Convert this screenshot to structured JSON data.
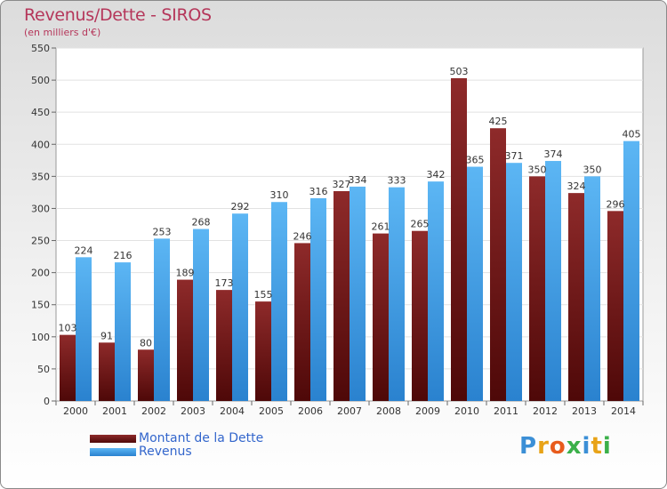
{
  "chart_data": {
    "type": "bar",
    "title": "Revenus/Dette - SIROS",
    "subtitle": "(en milliers d'€)",
    "xlabel": "",
    "ylabel": "",
    "ylim": [
      0,
      550
    ],
    "yticks": [
      0,
      50,
      100,
      150,
      200,
      250,
      300,
      350,
      400,
      450,
      500,
      550
    ],
    "grid": true,
    "legend_position": "bottom-left",
    "categories": [
      "2000",
      "2001",
      "2002",
      "2003",
      "2004",
      "2005",
      "2006",
      "2007",
      "2008",
      "2009",
      "2010",
      "2011",
      "2012",
      "2013",
      "2014"
    ],
    "series": [
      {
        "name": "Montant de la Dette",
        "color": "#7a1c1c",
        "values": [
          103,
          91,
          80,
          189,
          173,
          155,
          246,
          327,
          261,
          265,
          503,
          425,
          350,
          324,
          296
        ]
      },
      {
        "name": "Revenus",
        "color": "#3a9ee6",
        "values": [
          224,
          216,
          253,
          268,
          292,
          310,
          316,
          334,
          333,
          342,
          365,
          371,
          374,
          350,
          405
        ]
      }
    ]
  },
  "logo": {
    "text": "Proxiti",
    "colors": [
      "#3b8fd6",
      "#e8a317",
      "#e85b1c",
      "#3bb04a",
      "#3b8fd6",
      "#e8a317",
      "#3bb04a"
    ]
  }
}
